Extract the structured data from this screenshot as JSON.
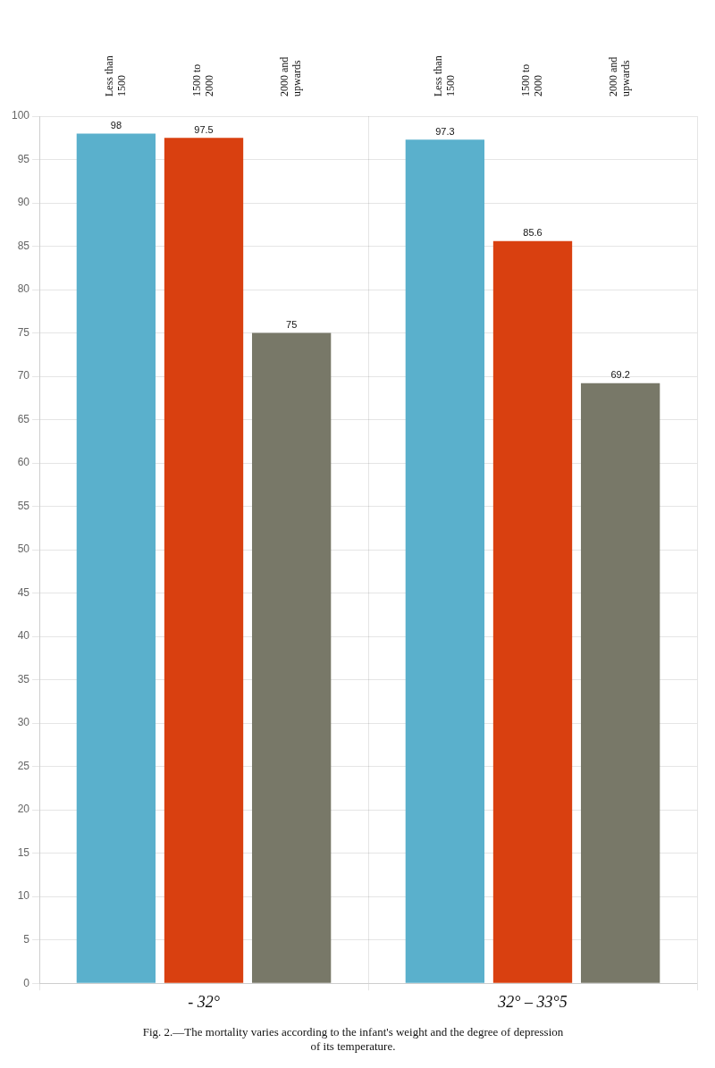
{
  "chart_data": {
    "type": "bar",
    "title": "Fig. 2.—The mortality varies according to the infant's weight and the degree of depression\nof its temperature.",
    "categories": [
      "- 32°",
      "32° – 33°5"
    ],
    "series": [
      {
        "name": "Less than\n1500",
        "color": "#5ab0cc",
        "values": [
          98,
          97.3
        ]
      },
      {
        "name": "1500 to\n2000",
        "color": "#d94010",
        "values": [
          97.5,
          85.6
        ]
      },
      {
        "name": "2000 and\nupwards",
        "color": "#787868",
        "values": [
          75,
          69.2
        ]
      }
    ],
    "ylim": [
      0,
      100
    ],
    "yticks": [
      0,
      5,
      10,
      15,
      20,
      25,
      30,
      35,
      40,
      45,
      50,
      55,
      60,
      65,
      70,
      75,
      80,
      85,
      90,
      95,
      100
    ],
    "grid": true,
    "data_labels": true
  }
}
